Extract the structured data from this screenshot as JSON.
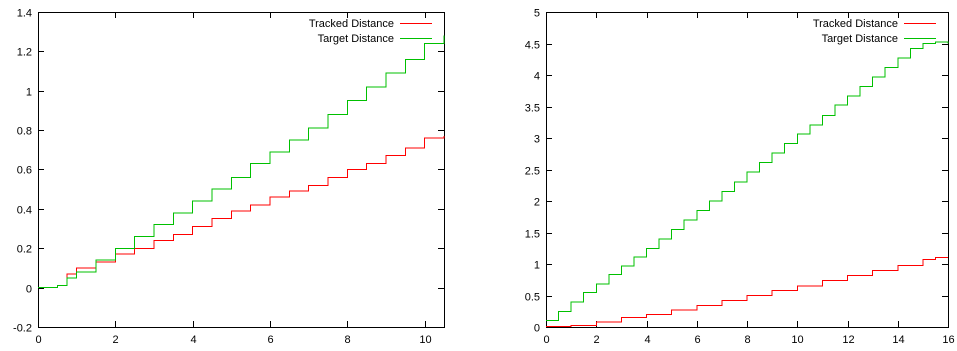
{
  "chart_data": [
    {
      "type": "line",
      "title": "",
      "xlabel": "",
      "ylabel": "",
      "xlim": [
        0,
        10.5
      ],
      "ylim": [
        -0.2,
        1.4
      ],
      "x_ticks": [
        "0",
        "2",
        "4",
        "6",
        "8",
        "10"
      ],
      "y_ticks": [
        "-0.2",
        "0",
        "0.2",
        "0.4",
        "0.6",
        "0.8",
        "1",
        "1.2",
        "1.4"
      ],
      "grid": false,
      "legend_position": "top-right",
      "step": true,
      "series": [
        {
          "name": "Tracked Distance",
          "color": "#ff0000",
          "x": [
            0,
            0.5,
            0.75,
            1,
            1.5,
            2,
            2.5,
            3,
            3.5,
            4,
            4.5,
            5,
            5.5,
            6,
            6.5,
            7,
            7.5,
            8,
            8.5,
            9,
            9.5,
            10,
            10.5
          ],
          "y": [
            0,
            0.01,
            0.07,
            0.1,
            0.13,
            0.17,
            0.2,
            0.24,
            0.27,
            0.31,
            0.35,
            0.39,
            0.42,
            0.46,
            0.49,
            0.52,
            0.56,
            0.6,
            0.63,
            0.67,
            0.71,
            0.76,
            0.77
          ]
        },
        {
          "name": "Target Distance",
          "color": "#00c000",
          "x": [
            0,
            0.5,
            0.75,
            1,
            1.5,
            2,
            2.5,
            3,
            3.5,
            4,
            4.5,
            5,
            5.5,
            6,
            6.5,
            7,
            7.5,
            8,
            8.5,
            9,
            9.5,
            10,
            10.5
          ],
          "y": [
            0,
            0.01,
            0.05,
            0.08,
            0.14,
            0.2,
            0.26,
            0.32,
            0.38,
            0.44,
            0.5,
            0.56,
            0.63,
            0.69,
            0.75,
            0.81,
            0.88,
            0.95,
            1.02,
            1.09,
            1.16,
            1.24,
            1.28
          ]
        }
      ]
    },
    {
      "type": "line",
      "title": "",
      "xlabel": "",
      "ylabel": "",
      "xlim": [
        0,
        16
      ],
      "ylim": [
        0,
        5
      ],
      "x_ticks": [
        "0",
        "2",
        "4",
        "6",
        "8",
        "10",
        "12",
        "14",
        "16"
      ],
      "y_ticks": [
        "0",
        "0.5",
        "1",
        "1.5",
        "2",
        "2.5",
        "3",
        "3.5",
        "4",
        "4.5",
        "5"
      ],
      "grid": false,
      "legend_position": "top-right",
      "step": true,
      "series": [
        {
          "name": "Tracked Distance",
          "color": "#ff0000",
          "x": [
            0,
            1,
            2,
            3,
            4,
            5,
            6,
            7,
            8,
            9,
            10,
            11,
            12,
            13,
            14,
            15,
            15.5,
            16
          ],
          "y": [
            0.01,
            0.02,
            0.08,
            0.15,
            0.2,
            0.27,
            0.34,
            0.42,
            0.5,
            0.58,
            0.65,
            0.74,
            0.82,
            0.9,
            0.98,
            1.07,
            1.1,
            1.1
          ]
        },
        {
          "name": "Target Distance",
          "color": "#00c000",
          "x": [
            0,
            0.5,
            1,
            1.5,
            2,
            2.5,
            3,
            3.5,
            4,
            4.5,
            5,
            5.5,
            6,
            6.5,
            7,
            7.5,
            8,
            8.5,
            9,
            9.5,
            10,
            10.5,
            11,
            11.5,
            12,
            12.5,
            13,
            13.5,
            14,
            14.5,
            15,
            15.5,
            16
          ],
          "y": [
            0.1,
            0.25,
            0.4,
            0.55,
            0.68,
            0.83,
            0.97,
            1.11,
            1.25,
            1.4,
            1.55,
            1.7,
            1.85,
            2.0,
            2.15,
            2.3,
            2.46,
            2.61,
            2.76,
            2.91,
            3.06,
            3.21,
            3.36,
            3.52,
            3.67,
            3.82,
            3.97,
            4.12,
            4.27,
            4.42,
            4.5,
            4.52,
            4.5
          ]
        }
      ]
    }
  ]
}
